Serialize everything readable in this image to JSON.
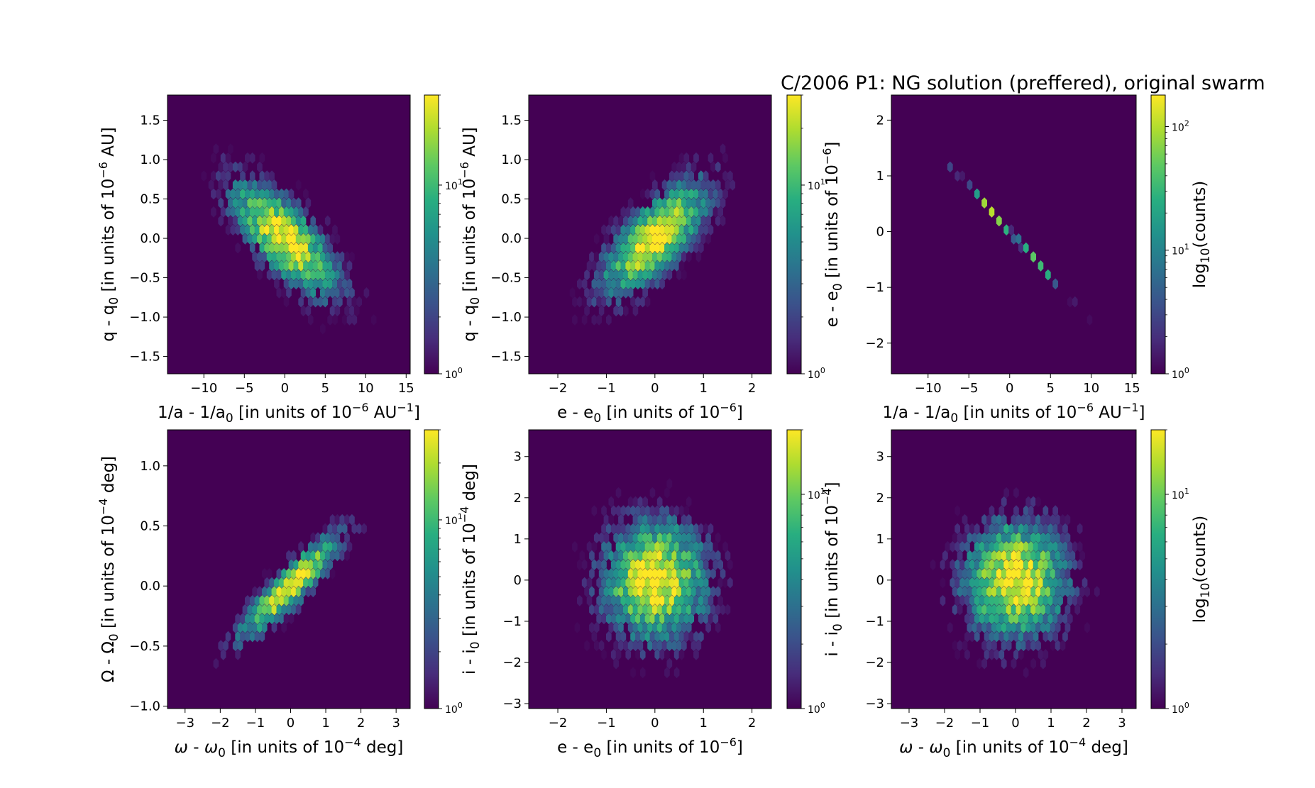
{
  "title": "C/2006 P1:  NG solution (preffered), original swarm",
  "colors": {
    "background": "#440154",
    "colormap": [
      "#440154",
      "#472d7b",
      "#3b528b",
      "#2c728e",
      "#21918c",
      "#28ae80",
      "#5ec962",
      "#addc30",
      "#fde725"
    ]
  },
  "chart_data": [
    {
      "type": "heatmap",
      "subtype": "hexbin",
      "xlabel_html": "1/a - 1/a<tspan dy='6' font-size='17'>0</tspan><tspan dy='-6'> [in units of 10</tspan><tspan dy='-9' font-size='16'>−6</tspan><tspan dy='9'> AU</tspan><tspan dy='-9' font-size='16'>−1</tspan><tspan dy='9'>]</tspan>",
      "ylabel_html": "q - q<tspan dy='6' font-size='17'>0</tspan><tspan dy='-6'> [in units of 10</tspan><tspan dy='-9' font-size='16'>−6</tspan><tspan dy='9'> AU]</tspan>",
      "xlim": [
        -14.5,
        15.5
      ],
      "ylim": [
        -1.72,
        1.82
      ],
      "xticks": [
        -10,
        -5,
        0,
        5,
        10,
        15
      ],
      "xtick_labels": [
        "−10",
        "−5",
        "0",
        "5",
        "10",
        "15"
      ],
      "yticks": [
        -1.5,
        -1.0,
        -0.5,
        0.0,
        0.5,
        1.0,
        1.5
      ],
      "ytick_labels": [
        "−1.5",
        "−1.0",
        "−0.5",
        "0.0",
        "0.5",
        "1.0",
        "1.5"
      ],
      "distribution": {
        "sx": 4.5,
        "sy": 0.5,
        "rho": -0.72
      },
      "colorbar": {
        "scale": "log",
        "range": [
          1,
          30
        ],
        "tick_labels": [
          "10^0",
          "10^1"
        ],
        "label": ""
      }
    },
    {
      "type": "heatmap",
      "subtype": "hexbin",
      "xlabel_html": "e - e<tspan dy='6' font-size='17'>0</tspan><tspan dy='-6'> [in units of 10</tspan><tspan dy='-9' font-size='16'>−6</tspan><tspan dy='9'>]</tspan>",
      "ylabel_html": "q - q<tspan dy='6' font-size='17'>0</tspan><tspan dy='-6'> [in units of 10</tspan><tspan dy='-9' font-size='16'>−6</tspan><tspan dy='9'> AU]</tspan>",
      "xlim": [
        -2.6,
        2.4
      ],
      "ylim": [
        -1.72,
        1.82
      ],
      "xticks": [
        -2,
        -1,
        0,
        1,
        2
      ],
      "xtick_labels": [
        "−2",
        "−1",
        "0",
        "1",
        "2"
      ],
      "yticks": [
        -1.5,
        -1.0,
        -0.5,
        0.0,
        0.5,
        1.0,
        1.5
      ],
      "ytick_labels": [
        "−1.5",
        "−1.0",
        "−0.5",
        "0.0",
        "0.5",
        "1.0",
        "1.5"
      ],
      "distribution": {
        "sx": 0.75,
        "sy": 0.5,
        "rho": 0.72
      },
      "colorbar": {
        "scale": "log",
        "range": [
          1,
          30
        ],
        "tick_labels": [
          "10^0",
          "10^1"
        ],
        "label": ""
      }
    },
    {
      "type": "heatmap",
      "subtype": "hexbin",
      "xlabel_html": "1/a - 1/a<tspan dy='6' font-size='17'>0</tspan><tspan dy='-6'> [in units of 10</tspan><tspan dy='-9' font-size='16'>−6</tspan><tspan dy='9'> AU</tspan><tspan dy='-9' font-size='16'>−1</tspan><tspan dy='9'>]</tspan>",
      "ylabel_html": "e - e<tspan dy='6' font-size='17'>0</tspan><tspan dy='-6'> [in units of 10</tspan><tspan dy='-9' font-size='16'>−6</tspan><tspan dy='9'>]</tspan>",
      "xlim": [
        -14.5,
        15.5
      ],
      "ylim": [
        -2.55,
        2.45
      ],
      "xticks": [
        -10,
        -5,
        0,
        5,
        10,
        15
      ],
      "xtick_labels": [
        "−10",
        "−5",
        "0",
        "5",
        "10",
        "15"
      ],
      "yticks": [
        -2,
        -1,
        0,
        1,
        2
      ],
      "ytick_labels": [
        "−2",
        "−1",
        "0",
        "1",
        "2"
      ],
      "distribution": {
        "sx": 4.5,
        "sy": 0.73,
        "rho": -0.999
      },
      "colorbar": {
        "scale": "log",
        "range": [
          1,
          180
        ],
        "tick_labels": [
          "10^0",
          "10^1",
          "10^2"
        ],
        "label": "log<tspan dy='6' font-size='17'>10</tspan><tspan dy='-6'>(counts)</tspan>"
      }
    },
    {
      "type": "heatmap",
      "subtype": "hexbin",
      "xlabel_html": "<tspan font-style='italic'>ω</tspan> - <tspan font-style='italic'>ω</tspan><tspan dy='6' font-size='17'>0</tspan><tspan dy='-6'> [in units of 10</tspan><tspan dy='-9' font-size='16'>−4</tspan><tspan dy='9'> deg]</tspan>",
      "ylabel_html": "Ω - Ω<tspan dy='6' font-size='17'>0</tspan><tspan dy='-6'> [in units of 10</tspan><tspan dy='-9' font-size='16'>−4</tspan><tspan dy='9'> deg]</tspan>",
      "xlim": [
        -3.5,
        3.4
      ],
      "ylim": [
        -1.02,
        1.3
      ],
      "xticks": [
        -3,
        -2,
        -1,
        0,
        1,
        2,
        3
      ],
      "xtick_labels": [
        "−3",
        "−2",
        "−1",
        "0",
        "1",
        "2",
        "3"
      ],
      "yticks": [
        -1.0,
        -0.5,
        0.0,
        0.5,
        1.0
      ],
      "ytick_labels": [
        "−1.0",
        "−0.5",
        "0.0",
        "0.5",
        "1.0"
      ],
      "distribution": {
        "sx": 1.0,
        "sy": 0.3,
        "rho": 0.9
      },
      "colorbar": {
        "scale": "log",
        "range": [
          1,
          30
        ],
        "tick_labels": [
          "10^0",
          "10^1"
        ],
        "label": ""
      }
    },
    {
      "type": "heatmap",
      "subtype": "hexbin",
      "xlabel_html": "e - e<tspan dy='6' font-size='17'>0</tspan><tspan dy='-6'> [in units of 10</tspan><tspan dy='-9' font-size='16'>−6</tspan><tspan dy='9'>]</tspan>",
      "ylabel_html": "i - i<tspan dy='6' font-size='17'>0</tspan><tspan dy='-6'> [in units of 10</tspan><tspan dy='-9' font-size='16'>−4</tspan><tspan dy='9'> deg]</tspan>",
      "xlim": [
        -2.6,
        2.4
      ],
      "ylim": [
        -3.12,
        3.65
      ],
      "xticks": [
        -2,
        -1,
        0,
        1,
        2
      ],
      "xtick_labels": [
        "−2",
        "−1",
        "0",
        "1",
        "2"
      ],
      "yticks": [
        -3,
        -2,
        -1,
        0,
        1,
        2,
        3
      ],
      "ytick_labels": [
        "−3",
        "−2",
        "−1",
        "0",
        "1",
        "2",
        "3"
      ],
      "distribution": {
        "sx": 0.75,
        "sy": 1.0,
        "rho": 0.0
      },
      "colorbar": {
        "scale": "log",
        "range": [
          1,
          20
        ],
        "tick_labels": [
          "10^0",
          "10^1"
        ],
        "label": ""
      }
    },
    {
      "type": "heatmap",
      "subtype": "hexbin",
      "xlabel_html": "<tspan font-style='italic'>ω</tspan> - <tspan font-style='italic'>ω</tspan><tspan dy='6' font-size='17'>0</tspan><tspan dy='-6'> [in units of 10</tspan><tspan dy='-9' font-size='16'>−4</tspan><tspan dy='9'> deg]</tspan>",
      "ylabel_html": "i - i<tspan dy='6' font-size='17'>0</tspan><tspan dy='-6'> [in units of 10</tspan><tspan dy='-9' font-size='16'>−4</tspan><tspan dy='9'>]</tspan>",
      "xlim": [
        -3.5,
        3.4
      ],
      "ylim": [
        -3.12,
        3.65
      ],
      "xticks": [
        -3,
        -2,
        -1,
        0,
        1,
        2,
        3
      ],
      "xtick_labels": [
        "−3",
        "−2",
        "−1",
        "0",
        "1",
        "2",
        "3"
      ],
      "yticks": [
        -3,
        -2,
        -1,
        0,
        1,
        2,
        3
      ],
      "ytick_labels": [
        "−3",
        "−2",
        "−1",
        "0",
        "1",
        "2",
        "3"
      ],
      "distribution": {
        "sx": 1.0,
        "sy": 1.0,
        "rho": 0.0
      },
      "colorbar": {
        "scale": "log",
        "range": [
          1,
          20
        ],
        "tick_labels": [
          "10^0",
          "10^1"
        ],
        "label": "log<tspan dy='6' font-size='17'>10</tspan><tspan dy='-6'>(counts)</tspan>"
      }
    }
  ]
}
